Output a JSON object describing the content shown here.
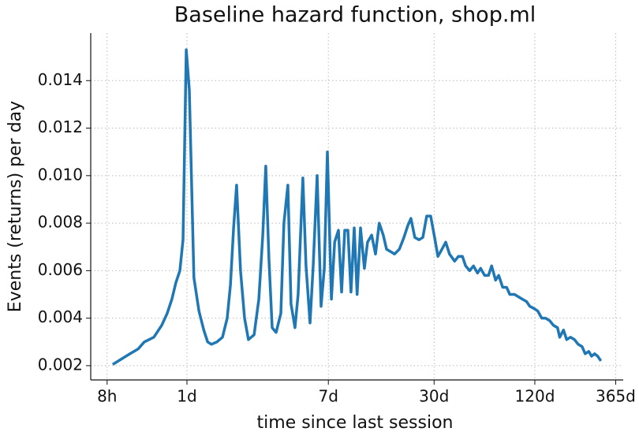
{
  "chart_data": {
    "type": "line",
    "title": "Baseline hazard function, shop.ml",
    "xlabel": "time since last session",
    "ylabel": "Events (returns) per day",
    "xscale": "log",
    "grid": true,
    "color": "#1f77b4",
    "xlim": [
      0.266,
      405
    ],
    "ylim": [
      0.0014,
      0.016
    ],
    "xticks": [
      {
        "value": 0.3333,
        "label": "8h"
      },
      {
        "value": 1,
        "label": "1d"
      },
      {
        "value": 7,
        "label": "7d"
      },
      {
        "value": 30,
        "label": "30d"
      },
      {
        "value": 120,
        "label": "120d"
      },
      {
        "value": 365,
        "label": "365d"
      }
    ],
    "yticks": [
      0.002,
      0.004,
      0.006,
      0.008,
      {
        "value": 0.01,
        "label": "0.010"
      },
      0.012,
      0.014
    ],
    "x": [
      0.36,
      0.41,
      0.457,
      0.51,
      0.556,
      0.634,
      0.707,
      0.762,
      0.813,
      0.859,
      0.907,
      0.947,
      0.99,
      1.033,
      1.1,
      1.18,
      1.26,
      1.33,
      1.4,
      1.51,
      1.63,
      1.74,
      1.82,
      1.9,
      1.98,
      2.09,
      2.21,
      2.33,
      2.52,
      2.69,
      2.84,
      2.96,
      3.09,
      3.23,
      3.41,
      3.64,
      3.8,
      4.01,
      4.19,
      4.42,
      4.62,
      4.93,
      5.15,
      5.44,
      5.68,
      6.0,
      6.33,
      6.62,
      6.91,
      7.3,
      7.63,
      8.04,
      8.4,
      8.77,
      9.16,
      9.56,
      9.99,
      10.4,
      10.9,
      11.5,
      12.0,
      12.7,
      13.4,
      14.1,
      14.9,
      15.6,
      16.5,
      17.4,
      18.6,
      19.8,
      20.9,
      21.8,
      23.0,
      24.4,
      25.7,
      27.1,
      28.6,
      30.2,
      31.6,
      33.4,
      35.2,
      37.1,
      39.8,
      41.9,
      44.3,
      46.3,
      48.9,
      51.6,
      54.5,
      56.9,
      60.1,
      63.4,
      66.2,
      69.9,
      73.0,
      77.1,
      81.4,
      85.0,
      90.7,
      95.7,
      101,
      107,
      112,
      119,
      125,
      132,
      139,
      147,
      155,
      164,
      169,
      178,
      186,
      196,
      207,
      218,
      230,
      240,
      252,
      262,
      273,
      285,
      298
    ],
    "values": [
      0.00205,
      0.0023,
      0.0025,
      0.0027,
      0.003,
      0.0032,
      0.0037,
      0.0042,
      0.0048,
      0.0055,
      0.006,
      0.0073,
      0.0153,
      0.0136,
      0.0057,
      0.0043,
      0.0035,
      0.003,
      0.0029,
      0.003,
      0.0032,
      0.004,
      0.0054,
      0.0078,
      0.0096,
      0.006,
      0.004,
      0.0031,
      0.0033,
      0.0048,
      0.0075,
      0.0104,
      0.0065,
      0.0036,
      0.0034,
      0.0042,
      0.008,
      0.0096,
      0.0046,
      0.0036,
      0.005,
      0.0099,
      0.0062,
      0.0038,
      0.0062,
      0.01,
      0.0045,
      0.0061,
      0.011,
      0.0048,
      0.0072,
      0.0077,
      0.0051,
      0.0077,
      0.0077,
      0.0051,
      0.0078,
      0.005,
      0.0078,
      0.0061,
      0.0072,
      0.0075,
      0.0067,
      0.008,
      0.0075,
      0.0069,
      0.0068,
      0.0067,
      0.0069,
      0.0074,
      0.0079,
      0.0082,
      0.0074,
      0.0073,
      0.0074,
      0.0083,
      0.0083,
      0.0074,
      0.0066,
      0.0069,
      0.0072,
      0.0067,
      0.0064,
      0.0066,
      0.0066,
      0.0062,
      0.006,
      0.0062,
      0.0059,
      0.0061,
      0.0058,
      0.0058,
      0.0062,
      0.0056,
      0.0058,
      0.0053,
      0.0053,
      0.005,
      0.005,
      0.0049,
      0.0048,
      0.0047,
      0.0045,
      0.0044,
      0.0043,
      0.004,
      0.004,
      0.0039,
      0.0037,
      0.0036,
      0.0032,
      0.0035,
      0.0031,
      0.0032,
      0.0031,
      0.0029,
      0.0028,
      0.0025,
      0.0026,
      0.0024,
      0.0025,
      0.0024,
      0.0022
    ]
  }
}
